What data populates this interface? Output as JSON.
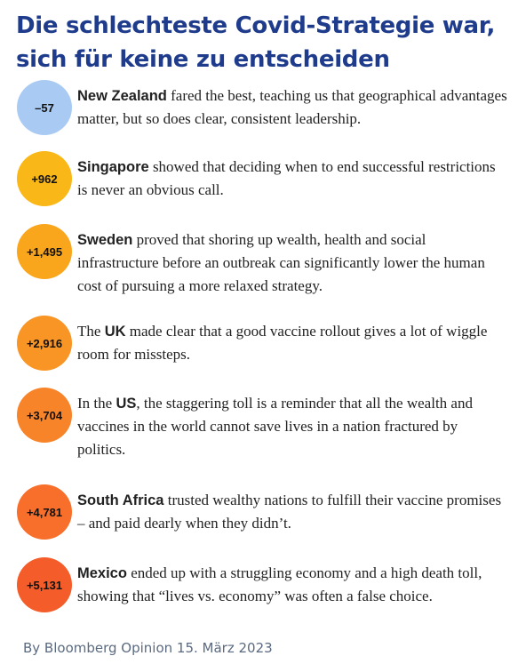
{
  "title": "Die schlechteste Covid-Strategie war, sich für keine zu entscheiden",
  "items": [
    {
      "badge": "–57",
      "color": "#a9cbf3",
      "bold": "New Zealand",
      "rest": " fared the best, teaching us that geographical advantages matter, but so does clear, consistent leadership."
    },
    {
      "badge": "+962",
      "color": "#f9b818",
      "bold": "Singapore",
      "rest": " showed that deciding when to end successful restrictions is never an obvious call."
    },
    {
      "badge": "+1,495",
      "color": "#f9a61c",
      "bold": "Sweden",
      "rest": " proved that shoring up wealth, health and social infrastructure before an outbreak can significantly lower the human cost of pursuing a more relaxed strategy."
    },
    {
      "badge": "+2,916",
      "color": "#f99524",
      "prefix": "The ",
      "bold": "UK",
      "rest": " made clear that a good vaccine rollout gives a lot of wiggle room for missteps."
    },
    {
      "badge": "+3,704",
      "color": "#f8842a",
      "prefix": "In the ",
      "bold": "US",
      "rest": ", the staggering toll is a reminder that all the wealth and vaccines in the world cannot save lives in a nation fractured by politics."
    },
    {
      "badge": "+4,781",
      "color": "#f76f2a",
      "bold": "South Africa",
      "rest": " trusted wealthy nations to fulfill their vaccine promises – and paid dearly when they didn’t."
    },
    {
      "badge": "+5,131",
      "color": "#f45d2a",
      "bold": "Mexico",
      "rest": " ended up with a struggling economy and a high death toll, showing that “lives vs. economy” was often a false choice."
    }
  ],
  "footer": "By Bloomberg Opinion 15. März 2023"
}
